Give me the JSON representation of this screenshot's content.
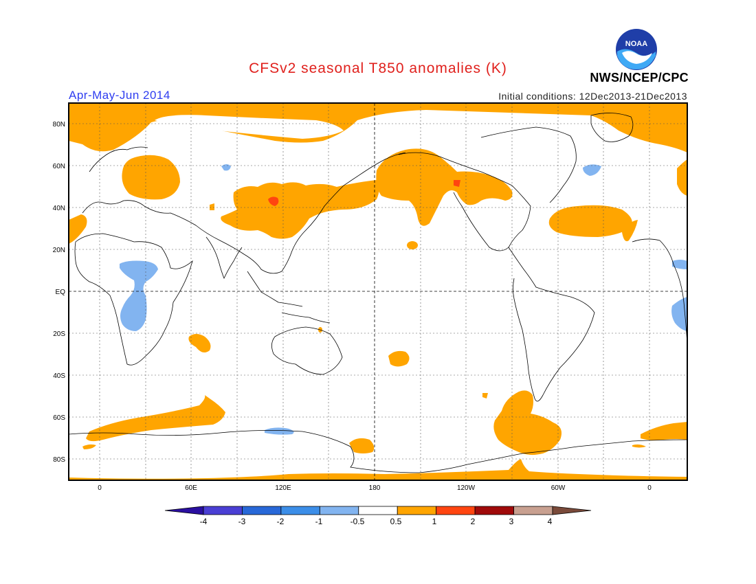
{
  "header": {
    "title": "CFSv2 seasonal T850 anomalies (K)",
    "season": "Apr-May-Jun 2014",
    "initial_conditions": "Initial conditions: 12Dec2013-21Dec2013",
    "agency": "NWS/NCEP/CPC",
    "logo_text": "NOAA"
  },
  "map": {
    "lat_labels": [
      "80N",
      "60N",
      "40N",
      "20N",
      "EQ",
      "20S",
      "40S",
      "60S",
      "80S"
    ],
    "lon_labels": [
      "0",
      "60E",
      "120E",
      "180",
      "120W",
      "60W",
      "0"
    ],
    "projection": "cylindrical equidistant, centered on 180",
    "anomaly_colors": {
      "warm_0_5_to_1": "#ffa500",
      "warm_1_to_2": "#ff4510",
      "cool_minus1_to_minus0_5": "#82b4f0"
    }
  },
  "colorbar": {
    "labels": [
      "-4",
      "-3",
      "-2",
      "-1",
      "-0.5",
      "0.5",
      "1",
      "2",
      "3",
      "4"
    ],
    "colors": [
      "#2a0fa0",
      "#4a3fd4",
      "#2868d8",
      "#3c8ee8",
      "#82b4f0",
      "#ffffff",
      "#ffa500",
      "#ff4510",
      "#a00a0a",
      "#c8a090",
      "#7a4a3a"
    ]
  }
}
